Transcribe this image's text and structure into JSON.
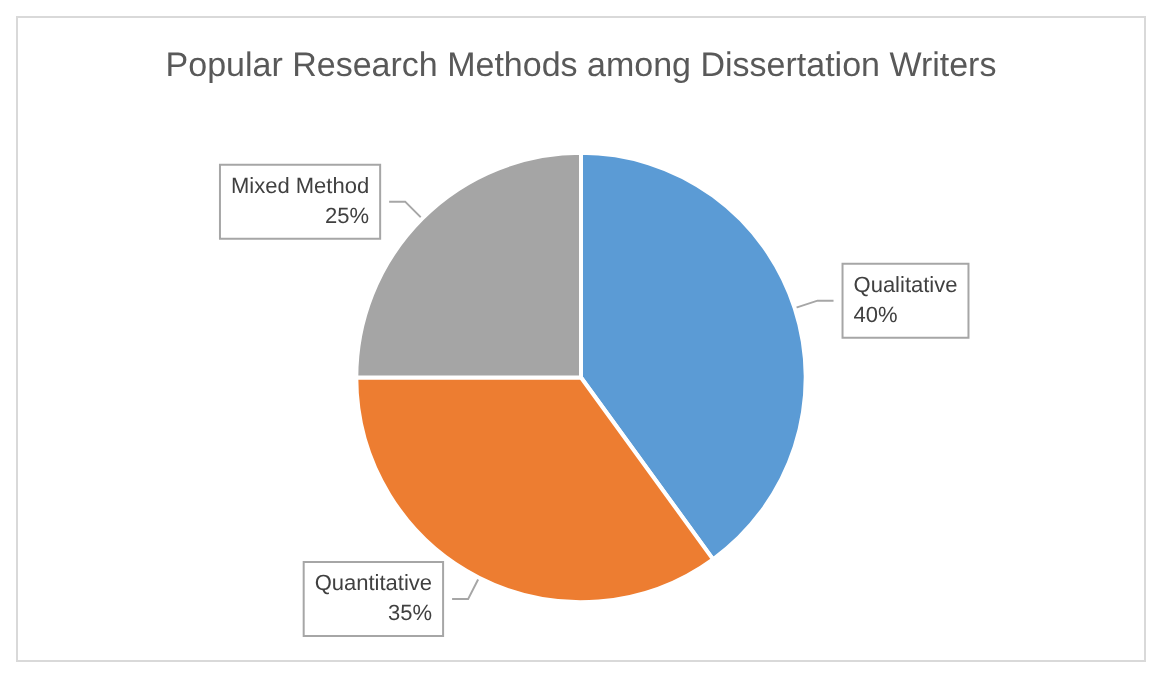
{
  "chart_data": {
    "type": "pie",
    "title": "Popular Research Methods among Dissertation Writers",
    "categories": [
      "Qualitative",
      "Quantitative",
      "Mixed Method"
    ],
    "values": [
      40,
      35,
      25
    ],
    "colors": [
      "#5b9bd5",
      "#ed7d31",
      "#a5a5a5"
    ],
    "value_labels": [
      "40%",
      "35%",
      "25%"
    ],
    "legend": false
  }
}
